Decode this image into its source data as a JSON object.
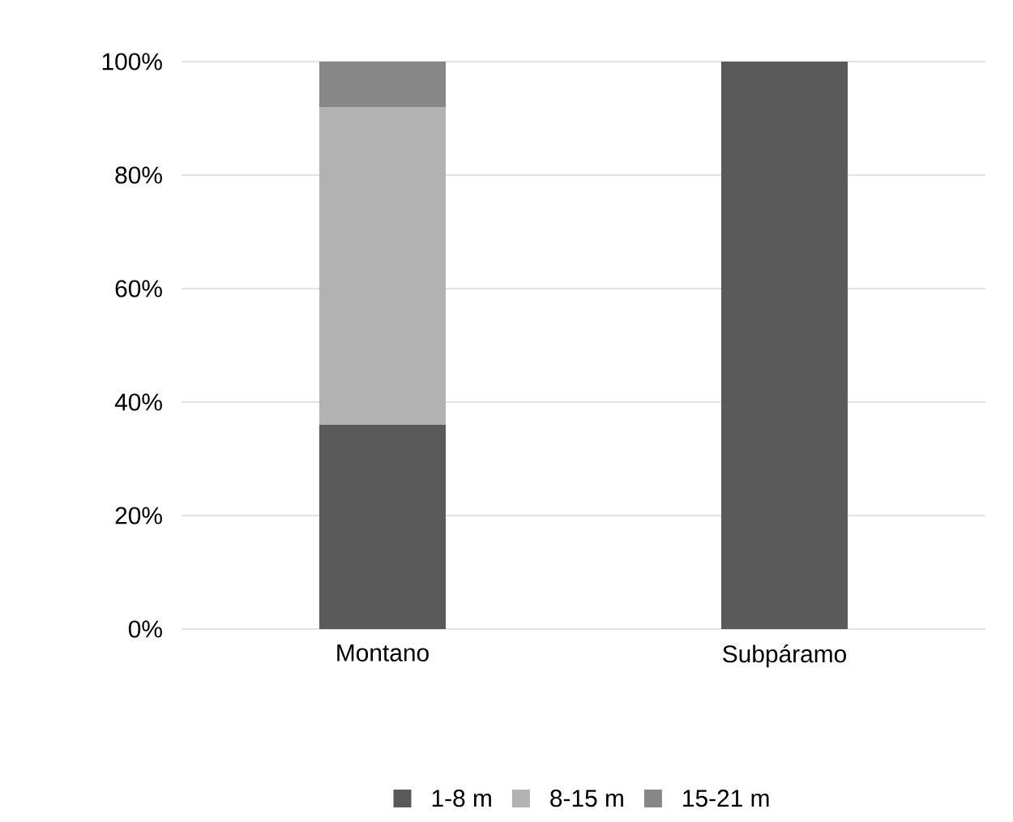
{
  "chart_data": {
    "type": "bar",
    "stacked": true,
    "categories": [
      "Montano",
      "Subpáramo"
    ],
    "series": [
      {
        "name": "1-8 m",
        "color": "#5a5a5a",
        "values": [
          36,
          100
        ]
      },
      {
        "name": "8-15 m",
        "color": "#b2b2b2",
        "values": [
          56,
          0
        ]
      },
      {
        "name": "15-21 m",
        "color": "#878787",
        "values": [
          8,
          0
        ]
      }
    ],
    "ylim": [
      0,
      100
    ],
    "yticks": [
      {
        "value": 0,
        "label": "0%"
      },
      {
        "value": 20,
        "label": "20%"
      },
      {
        "value": 40,
        "label": "40%"
      },
      {
        "value": 60,
        "label": "60%"
      },
      {
        "value": 80,
        "label": "80%"
      },
      {
        "value": 100,
        "label": "100%"
      }
    ],
    "grid": "y",
    "legend": "bottom"
  }
}
